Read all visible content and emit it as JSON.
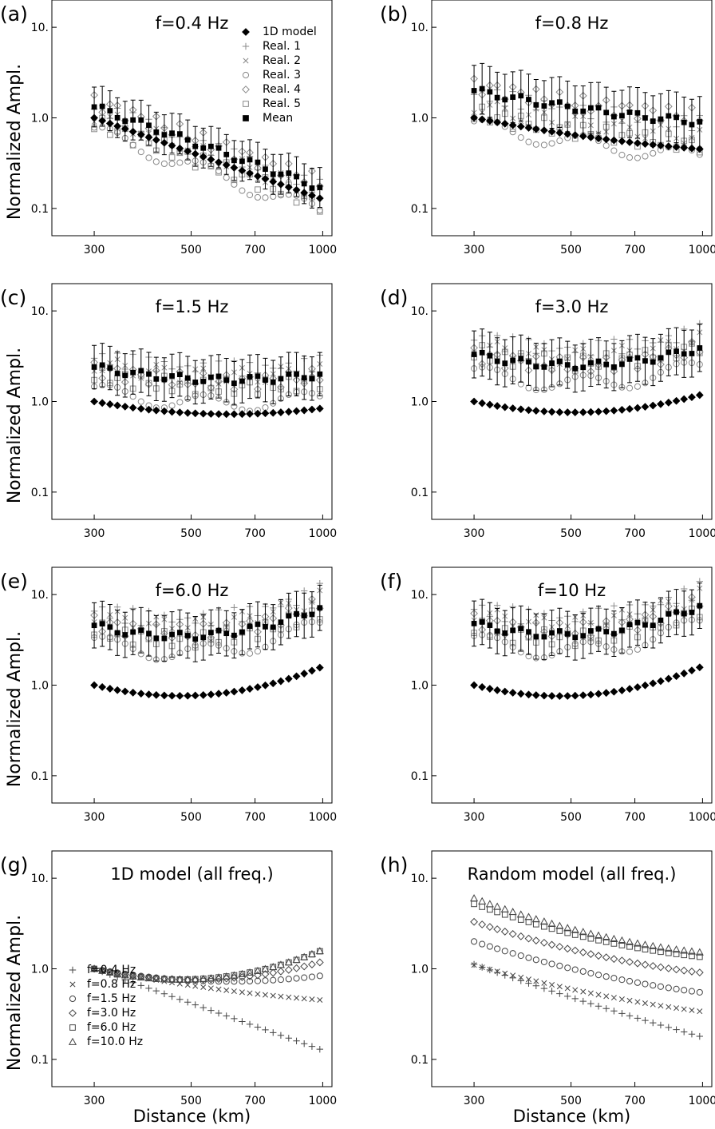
{
  "chart_data": [
    {
      "id": "a",
      "panel_label": "(a)",
      "title": "f=0.4 Hz",
      "type": "scatter",
      "xlabel": "",
      "ylabel": "Normalized Ampl.",
      "xscale": "log",
      "yscale": "log",
      "xlim": [
        240,
        1050
      ],
      "ylim": [
        0.05,
        20
      ],
      "xticks": [
        "300",
        "500",
        "700",
        "1000"
      ],
      "yticks": [
        "0.1",
        "1.0",
        "10."
      ],
      "legend": [
        "1D model",
        "Real. 1",
        "Real. 2",
        "Real. 3",
        "Real. 4",
        "Real. 5",
        "Mean"
      ],
      "legend_position": "top-right",
      "model_1d": {
        "A": 1.0,
        "B": -1.72,
        "C": 0.0,
        "C2": 0.0
      },
      "realizations": [
        {
          "name": "Real. 1",
          "dy": 0.12
        },
        {
          "name": "Real. 2",
          "dy": 0.04
        },
        {
          "name": "Real. 3",
          "dy": -0.15
        },
        {
          "name": "Real. 4",
          "dy": 0.18
        },
        {
          "name": "Real. 5",
          "dy": -0.06
        }
      ],
      "mean_offset": 0.12,
      "error_halfwidth": 0.22
    },
    {
      "id": "b",
      "panel_label": "(b)",
      "title": "f=0.8 Hz",
      "type": "scatter",
      "xlabel": "",
      "ylabel": "",
      "xscale": "log",
      "yscale": "log",
      "xlim": [
        240,
        1050
      ],
      "ylim": [
        0.05,
        20
      ],
      "xticks": [
        "300",
        "500",
        "700",
        "1000"
      ],
      "yticks": [
        "0.1",
        "1.0",
        "10."
      ],
      "model_1d": {
        "A": 1.0,
        "B": -0.95,
        "C": 0.0,
        "C2": 0.55
      },
      "realizations": [
        {
          "name": "Real. 1",
          "dy": 0.28
        },
        {
          "name": "Real. 2",
          "dy": 0.14
        },
        {
          "name": "Real. 3",
          "dy": -0.08
        },
        {
          "name": "Real. 4",
          "dy": 0.36
        },
        {
          "name": "Real. 5",
          "dy": 0.05
        }
      ],
      "mean_offset": 0.3,
      "error_halfwidth": 0.28
    },
    {
      "id": "c",
      "panel_label": "(c)",
      "title": "f=1.5 Hz",
      "type": "scatter",
      "xlabel": "",
      "ylabel": "Normalized Ampl.",
      "xscale": "log",
      "yscale": "log",
      "xlim": [
        240,
        1050
      ],
      "ylim": [
        0.05,
        20
      ],
      "xticks": [
        "300",
        "500",
        "700",
        "1000"
      ],
      "yticks": [
        "0.1",
        "1.0",
        "10."
      ],
      "model_1d": {
        "A": 1.0,
        "B": -0.9,
        "C": 0.0,
        "C2": 1.45
      },
      "realizations": [
        {
          "name": "Real. 1",
          "dy": 0.5
        },
        {
          "name": "Real. 2",
          "dy": 0.42
        },
        {
          "name": "Real. 3",
          "dy": 0.12
        },
        {
          "name": "Real. 4",
          "dy": 0.36
        },
        {
          "name": "Real. 5",
          "dy": 0.3
        }
      ],
      "mean_offset": 0.38,
      "error_halfwidth": 0.24
    },
    {
      "id": "d",
      "panel_label": "(d)",
      "title": "f=3.0 Hz",
      "type": "scatter",
      "xlabel": "",
      "ylabel": "",
      "xscale": "log",
      "yscale": "log",
      "xlim": [
        240,
        1050
      ],
      "ylim": [
        0.05,
        20
      ],
      "xticks": [
        "300",
        "500",
        "700",
        "1000"
      ],
      "yticks": [
        "0.1",
        "1.0",
        "10."
      ],
      "model_1d": {
        "A": 1.0,
        "B": -1.05,
        "C": 0.0,
        "C2": 2.3
      },
      "realizations": [
        {
          "name": "Real. 1",
          "dy": 0.7
        },
        {
          "name": "Real. 2",
          "dy": 0.62
        },
        {
          "name": "Real. 3",
          "dy": 0.32
        },
        {
          "name": "Real. 4",
          "dy": 0.52
        },
        {
          "name": "Real. 5",
          "dy": 0.55
        }
      ],
      "mean_offset": 0.52,
      "error_halfwidth": 0.26
    },
    {
      "id": "e",
      "panel_label": "(e)",
      "title": "f=6.0 Hz",
      "type": "scatter",
      "xlabel": "",
      "ylabel": "Normalized Ampl.",
      "xscale": "log",
      "yscale": "log",
      "xlim": [
        240,
        1050
      ],
      "ylim": [
        0.05,
        20
      ],
      "xticks": [
        "300",
        "500",
        "700",
        "1000"
      ],
      "yticks": [
        "0.1",
        "1.0",
        "10."
      ],
      "model_1d": {
        "A": 1.0,
        "B": -1.2,
        "C": 0.0,
        "C2": 3.05
      },
      "realizations": [
        {
          "name": "Real. 1",
          "dy": 0.84
        },
        {
          "name": "Real. 2",
          "dy": 0.78
        },
        {
          "name": "Real. 3",
          "dy": 0.48
        },
        {
          "name": "Real. 4",
          "dy": 0.7
        },
        {
          "name": "Real. 5",
          "dy": 0.62
        }
      ],
      "mean_offset": 0.66,
      "error_halfwidth": 0.25
    },
    {
      "id": "f",
      "panel_label": "(f)",
      "title": "f=10 Hz",
      "type": "scatter",
      "xlabel": "",
      "ylabel": "",
      "xscale": "log",
      "yscale": "log",
      "xlim": [
        240,
        1050
      ],
      "ylim": [
        0.05,
        20
      ],
      "xticks": [
        "300",
        "500",
        "700",
        "1000"
      ],
      "yticks": [
        "0.1",
        "1.0",
        "10."
      ],
      "model_1d": {
        "A": 1.0,
        "B": -1.22,
        "C": 0.0,
        "C2": 3.1
      },
      "realizations": [
        {
          "name": "Real. 1",
          "dy": 0.86
        },
        {
          "name": "Real. 2",
          "dy": 0.8
        },
        {
          "name": "Real. 3",
          "dy": 0.5
        },
        {
          "name": "Real. 4",
          "dy": 0.72
        },
        {
          "name": "Real. 5",
          "dy": 0.64
        }
      ],
      "mean_offset": 0.68,
      "error_halfwidth": 0.25
    },
    {
      "id": "g",
      "panel_label": "(g)",
      "title": "1D model (all freq.)",
      "type": "scatter",
      "xlabel": "Distance (km)",
      "ylabel": "Normalized Ampl.",
      "xscale": "log",
      "yscale": "log",
      "xlim": [
        240,
        1050
      ],
      "ylim": [
        0.05,
        20
      ],
      "xticks": [
        "300",
        "500",
        "700",
        "1000"
      ],
      "yticks": [
        "0.1",
        "1.0",
        "10."
      ],
      "legend_position": "bottom-left",
      "series": [
        {
          "name": "f=0.4 Hz",
          "marker": "plus",
          "A": 1.0,
          "B": -1.72,
          "C": 0.0,
          "C2": 0.0
        },
        {
          "name": "f=0.8 Hz",
          "marker": "cross",
          "A": 1.0,
          "B": -0.95,
          "C": 0.0,
          "C2": 0.55
        },
        {
          "name": "f=1.5 Hz",
          "marker": "circle",
          "A": 1.0,
          "B": -0.9,
          "C": 0.0,
          "C2": 1.45
        },
        {
          "name": "f=3.0 Hz",
          "marker": "diamond",
          "A": 1.0,
          "B": -1.05,
          "C": 0.0,
          "C2": 2.3
        },
        {
          "name": "f=6.0 Hz",
          "marker": "square",
          "A": 1.0,
          "B": -1.2,
          "C": 0.0,
          "C2": 3.05
        },
        {
          "name": "f=10.0 Hz",
          "marker": "triangle",
          "A": 1.0,
          "B": -1.22,
          "C": 0.0,
          "C2": 3.1
        }
      ]
    },
    {
      "id": "h",
      "panel_label": "(h)",
      "title": "Random model (all freq.)",
      "type": "scatter",
      "xlabel": "Distance (km)",
      "ylabel": "",
      "xscale": "log",
      "yscale": "log",
      "xlim": [
        240,
        1050
      ],
      "ylim": [
        0.05,
        20
      ],
      "xticks": [
        "300",
        "500",
        "700",
        "1000"
      ],
      "yticks": [
        "0.1",
        "1.0",
        "10."
      ],
      "series": [
        {
          "name": "f=0.4 Hz",
          "marker": "plus",
          "A": 1.12,
          "B": -1.72,
          "C": 0.0,
          "C2": 0.35
        },
        {
          "name": "f=0.8 Hz",
          "marker": "cross",
          "A": 1.1,
          "B": -1.35,
          "C": 0.0,
          "C2": 0.7
        },
        {
          "name": "f=1.5 Hz",
          "marker": "circle",
          "A": 2.0,
          "B": -1.55,
          "C": 0.0,
          "C2": 0.9
        },
        {
          "name": "f=3.0 Hz",
          "marker": "diamond",
          "A": 3.3,
          "B": -1.6,
          "C": 0.0,
          "C2": 1.0
        },
        {
          "name": "f=6.0 Hz",
          "marker": "square",
          "A": 5.2,
          "B": -1.75,
          "C": 0.0,
          "C2": 1.2
        },
        {
          "name": "f=10.0 Hz",
          "marker": "triangle",
          "A": 6.0,
          "B": -1.8,
          "C": 0.0,
          "C2": 1.25
        }
      ]
    }
  ]
}
